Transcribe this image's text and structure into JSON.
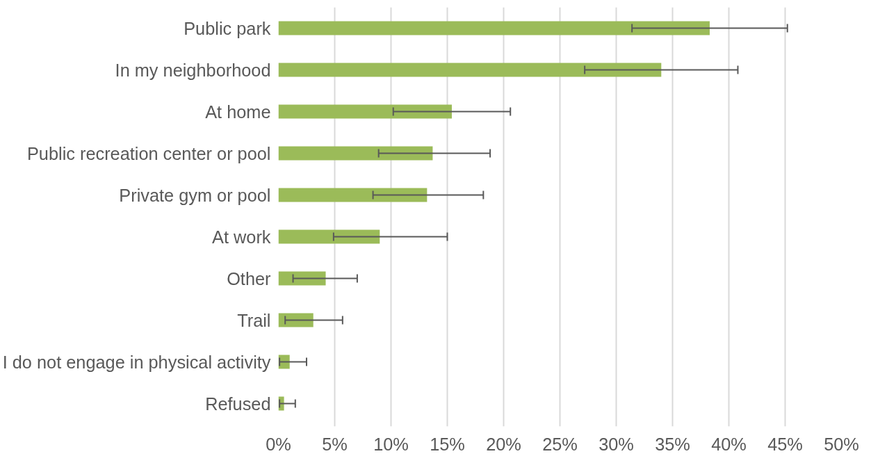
{
  "chart_data": {
    "type": "bar",
    "orientation": "horizontal",
    "categories": [
      "Public park",
      "In my neighborhood",
      "At home",
      "Public recreation center or pool",
      "Private gym or pool",
      "At work",
      "Other",
      "Trail",
      "I do not engage in physical activity",
      "Refused"
    ],
    "values": [
      38.3,
      34.0,
      15.4,
      13.7,
      13.2,
      9.0,
      4.2,
      3.1,
      1.0,
      0.5
    ],
    "errors": [
      [
        31.4,
        45.2
      ],
      [
        27.2,
        40.8
      ],
      [
        10.2,
        20.6
      ],
      [
        8.9,
        18.8
      ],
      [
        8.4,
        18.2
      ],
      [
        4.9,
        15.0
      ],
      [
        1.3,
        7.0
      ],
      [
        0.6,
        5.7
      ],
      [
        0.1,
        2.5
      ],
      [
        0.1,
        1.5
      ]
    ],
    "color": "#9bbb59",
    "xlim": [
      0,
      50
    ],
    "xticks": [
      {
        "value": 0,
        "label": "0%"
      },
      {
        "value": 5,
        "label": "5%"
      },
      {
        "value": 10,
        "label": "10%"
      },
      {
        "value": 15,
        "label": "15%"
      },
      {
        "value": 20,
        "label": "20%"
      },
      {
        "value": 25,
        "label": "25%"
      },
      {
        "value": 30,
        "label": "30%"
      },
      {
        "value": 35,
        "label": "35%"
      },
      {
        "value": 40,
        "label": "40%"
      },
      {
        "value": 45,
        "label": "45%"
      },
      {
        "value": 50,
        "label": "50%"
      }
    ],
    "grid": "x"
  }
}
